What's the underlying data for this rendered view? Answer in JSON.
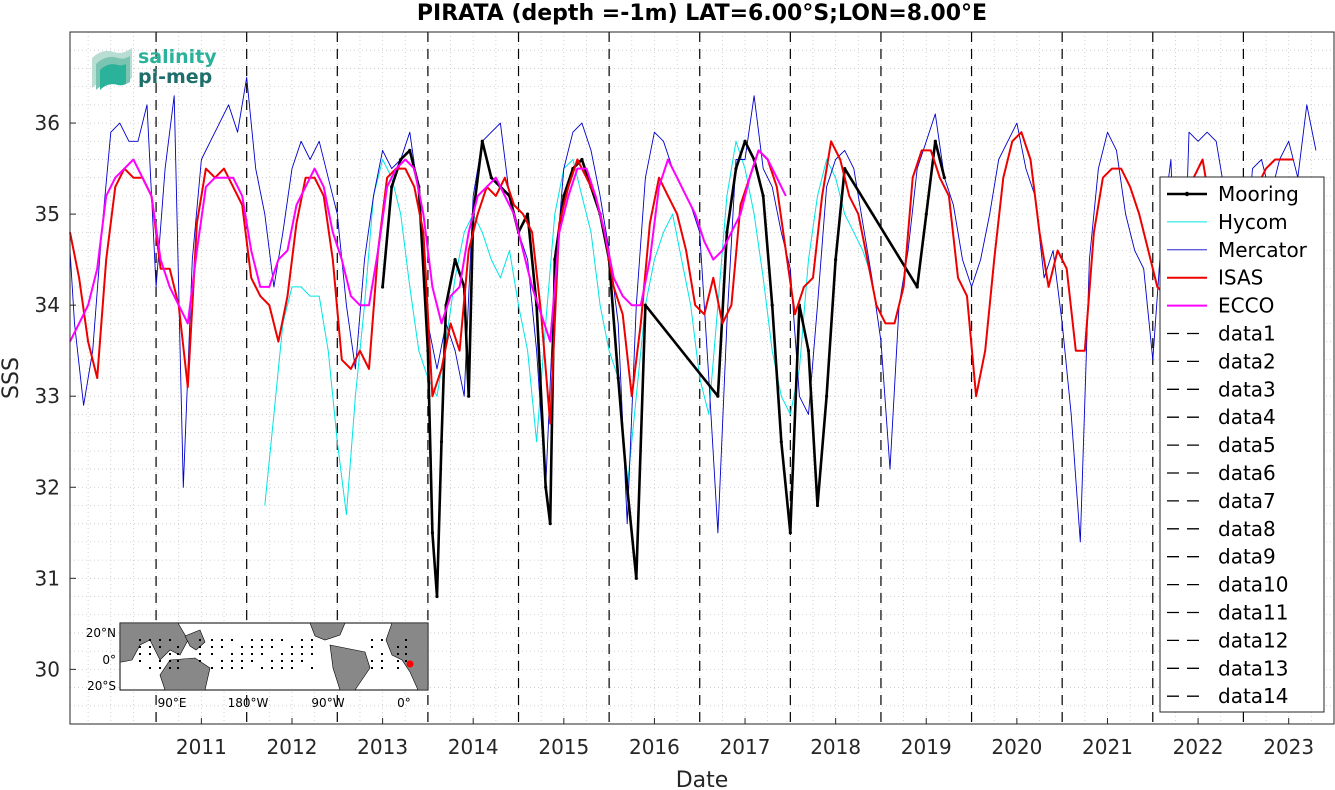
{
  "chart_data": {
    "type": "line",
    "title": "PIRATA (depth =-1m) LAT=6.00°S;LON=8.00°E",
    "xlabel": "Date",
    "ylabel": "SSS",
    "xlim": [
      2010.05,
      2024.0
    ],
    "ylim": [
      29.4,
      37.0
    ],
    "x_ticks": [
      "2011",
      "2012",
      "2013",
      "2014",
      "2015",
      "2016",
      "2017",
      "2018",
      "2019",
      "2020",
      "2021",
      "2022",
      "2023"
    ],
    "y_ticks": [
      "30",
      "31",
      "32",
      "33",
      "34",
      "35",
      "36"
    ],
    "grid": "on (dotted, major and minor)",
    "legend_position": "right",
    "logo": {
      "line1": "salinity",
      "line2": "pi-mep"
    },
    "inset_map": {
      "lat_labels": [
        "20°N",
        "0°",
        "20°S"
      ],
      "lon_labels": [
        "90°E",
        "180°W",
        "90°W",
        "0°"
      ],
      "marker_color": "#ff0000"
    },
    "vlines": {
      "x": [
        2011.0,
        2012.0,
        2013.0,
        2014.0,
        2015.0,
        2016.0,
        2017.0,
        2018.0,
        2019.0,
        2020.0,
        2021.0,
        2022.0,
        2023.0
      ],
      "style": "dashed",
      "color": "#000000"
    },
    "series": [
      {
        "name": "Mooring",
        "color": "#000000",
        "x": [
          2013.5,
          2013.6,
          2013.7,
          2013.8,
          2013.9,
          2014.0,
          2014.05,
          2014.1,
          2014.15,
          2014.2,
          2014.3,
          2014.4,
          2014.45,
          2014.5,
          2014.6,
          2014.7,
          2014.8,
          2014.9,
          2015.0,
          2015.1,
          2015.2,
          2015.3,
          2015.35,
          2015.4,
          2015.5,
          2015.6,
          2015.7,
          2015.8,
          2015.9,
          2016.0,
          2016.1,
          2016.2,
          2016.3,
          2016.4,
          2017.2,
          2017.3,
          2017.4,
          2017.5,
          2017.6,
          2017.7,
          2017.8,
          2017.9,
          2018.0,
          2018.1,
          2018.2,
          2018.3,
          2018.4,
          2018.5,
          2018.6,
          2019.4,
          2019.5,
          2019.6,
          2019.7
        ],
        "y": [
          34.2,
          35.3,
          35.6,
          35.7,
          35.3,
          33.5,
          31.5,
          30.8,
          32.5,
          34.0,
          34.5,
          34.2,
          33.0,
          35.0,
          35.8,
          35.4,
          35.3,
          35.2,
          34.8,
          35.0,
          34.0,
          32.0,
          31.6,
          34.5,
          35.2,
          35.5,
          35.6,
          35.3,
          35.0,
          34.5,
          33.2,
          32.0,
          31.0,
          34.0,
          33.0,
          34.8,
          35.5,
          35.8,
          35.6,
          35.2,
          34.0,
          32.5,
          31.5,
          34.0,
          33.5,
          31.8,
          33.0,
          34.5,
          35.5,
          34.2,
          35.0,
          35.8,
          35.4
        ]
      },
      {
        "name": "Hycom",
        "color": "#00e5e5",
        "x": [
          2012.2,
          2012.3,
          2012.4,
          2012.5,
          2012.6,
          2012.7,
          2012.8,
          2012.9,
          2013.0,
          2013.1,
          2013.2,
          2013.3,
          2013.4,
          2013.5,
          2013.6,
          2013.7,
          2013.8,
          2013.9,
          2014.0,
          2014.1,
          2014.2,
          2014.3,
          2014.4,
          2014.5,
          2014.6,
          2014.7,
          2014.8,
          2014.9,
          2015.0,
          2015.1,
          2015.2,
          2015.3,
          2015.4,
          2015.5,
          2015.6,
          2015.7,
          2015.8,
          2015.9,
          2016.0,
          2016.1,
          2016.2,
          2016.3,
          2016.4,
          2016.5,
          2016.6,
          2016.7,
          2016.8,
          2016.9,
          2017.0,
          2017.1,
          2017.2,
          2017.3,
          2017.4,
          2017.5,
          2017.6,
          2017.7,
          2017.8,
          2017.9,
          2018.0,
          2018.1,
          2018.2,
          2018.3,
          2018.4,
          2018.5,
          2018.6,
          2018.7,
          2018.8,
          2018.9
        ],
        "y": [
          31.8,
          32.8,
          33.8,
          34.2,
          34.2,
          34.1,
          34.1,
          33.5,
          32.5,
          31.7,
          33.0,
          34.0,
          35.2,
          35.6,
          35.4,
          35.0,
          34.2,
          33.5,
          33.2,
          33.0,
          33.6,
          34.3,
          34.8,
          35.0,
          34.8,
          34.5,
          34.3,
          34.6,
          34.0,
          33.5,
          32.5,
          33.8,
          35.0,
          35.5,
          35.6,
          35.2,
          34.8,
          34.0,
          33.5,
          33.2,
          32.0,
          33.0,
          34.0,
          34.5,
          34.8,
          35.0,
          34.5,
          34.0,
          33.2,
          32.8,
          34.0,
          35.2,
          35.8,
          35.5,
          35.0,
          34.3,
          33.5,
          33.0,
          32.8,
          33.3,
          34.5,
          35.2,
          35.6,
          35.4,
          35.0,
          34.8,
          34.6,
          34.3
        ]
      },
      {
        "name": "Mercator",
        "color": "#0000cc",
        "x": [
          2010.05,
          2010.1,
          2010.2,
          2010.3,
          2010.4,
          2010.5,
          2010.6,
          2010.7,
          2010.8,
          2010.9,
          2011.0,
          2011.1,
          2011.2,
          2011.3,
          2011.4,
          2011.5,
          2011.6,
          2011.7,
          2011.8,
          2011.9,
          2012.0,
          2012.1,
          2012.2,
          2012.3,
          2012.4,
          2012.5,
          2012.6,
          2012.7,
          2012.8,
          2012.9,
          2013.0,
          2013.1,
          2013.2,
          2013.3,
          2013.4,
          2013.5,
          2013.6,
          2013.7,
          2013.8,
          2013.9,
          2014.0,
          2014.1,
          2014.2,
          2014.3,
          2014.4,
          2014.5,
          2014.6,
          2014.7,
          2014.8,
          2014.9,
          2015.0,
          2015.1,
          2015.2,
          2015.3,
          2015.4,
          2015.5,
          2015.6,
          2015.7,
          2015.8,
          2015.9,
          2016.0,
          2016.1,
          2016.2,
          2016.3,
          2016.4,
          2016.5,
          2016.6,
          2016.7,
          2016.8,
          2016.9,
          2017.0,
          2017.1,
          2017.2,
          2017.3,
          2017.4,
          2017.5,
          2017.6,
          2017.7,
          2017.8,
          2017.9,
          2018.0,
          2018.1,
          2018.2,
          2018.3,
          2018.4,
          2018.5,
          2018.6,
          2018.7,
          2018.8,
          2018.9,
          2019.0,
          2019.1,
          2019.2,
          2019.3,
          2019.4,
          2019.5,
          2019.6,
          2019.7,
          2019.8,
          2019.9,
          2020.0,
          2020.1,
          2020.2,
          2020.3,
          2020.4,
          2020.5,
          2020.6,
          2020.7,
          2020.8,
          2020.9,
          2021.0,
          2021.1,
          2021.2,
          2021.3,
          2021.4,
          2021.5,
          2021.6,
          2021.7,
          2021.8,
          2021.9,
          2022.0,
          2022.1,
          2022.2,
          2022.3,
          2022.4,
          2022.5,
          2022.6,
          2022.7,
          2022.8,
          2022.9,
          2023.0,
          2023.1,
          2023.2,
          2023.3,
          2023.4,
          2023.5,
          2023.6,
          2023.7,
          2023.8
        ],
        "y": [
          34.6,
          33.8,
          32.9,
          33.5,
          34.8,
          35.9,
          36.0,
          35.8,
          35.8,
          36.2,
          34.2,
          35.5,
          36.3,
          32.0,
          34.5,
          35.6,
          35.8,
          36.0,
          36.2,
          35.9,
          36.5,
          35.5,
          35.0,
          34.2,
          34.8,
          35.5,
          35.8,
          35.6,
          35.8,
          35.4,
          35.0,
          34.0,
          33.3,
          34.5,
          35.2,
          35.7,
          35.5,
          35.6,
          35.9,
          35.2,
          33.8,
          33.3,
          33.8,
          33.5,
          33.0,
          35.2,
          35.8,
          35.9,
          36.0,
          35.2,
          34.8,
          34.5,
          33.5,
          32.0,
          34.3,
          35.5,
          35.9,
          36.0,
          35.7,
          35.2,
          34.6,
          33.8,
          31.6,
          34.0,
          35.4,
          35.9,
          35.8,
          35.5,
          35.3,
          35.1,
          34.8,
          33.2,
          31.5,
          33.8,
          35.6,
          35.6,
          36.3,
          35.5,
          35.3,
          34.8,
          34.4,
          33.0,
          32.8,
          34.0,
          35.3,
          35.6,
          35.7,
          35.5,
          34.9,
          34.3,
          33.6,
          32.2,
          34.0,
          34.6,
          35.5,
          35.8,
          36.1,
          35.4,
          35.1,
          34.5,
          34.2,
          34.5,
          35.0,
          35.6,
          35.8,
          36.0,
          35.5,
          35.2,
          34.3,
          34.6,
          33.8,
          32.8,
          31.4,
          34.5,
          35.5,
          35.9,
          35.7,
          35.0,
          34.6,
          34.4,
          33.4,
          34.8,
          35.6,
          32.8,
          35.9,
          35.8,
          35.9,
          35.8,
          35.2,
          34.0,
          34.3,
          35.5,
          35.6,
          35.2,
          35.6,
          35.8,
          35.4,
          36.2,
          35.7
        ]
      },
      {
        "name": "ISAS",
        "color": "#ee0000",
        "x": [
          2010.05,
          2010.15,
          2010.25,
          2010.35,
          2010.45,
          2010.55,
          2010.65,
          2010.75,
          2010.85,
          2010.95,
          2011.05,
          2011.15,
          2011.25,
          2011.35,
          2011.45,
          2011.55,
          2011.65,
          2011.75,
          2011.85,
          2011.95,
          2012.05,
          2012.15,
          2012.25,
          2012.35,
          2012.45,
          2012.55,
          2012.65,
          2012.75,
          2012.85,
          2012.95,
          2013.05,
          2013.15,
          2013.25,
          2013.35,
          2013.45,
          2013.55,
          2013.65,
          2013.75,
          2013.85,
          2013.95,
          2014.05,
          2014.15,
          2014.25,
          2014.35,
          2014.45,
          2014.55,
          2014.65,
          2014.75,
          2014.85,
          2014.95,
          2015.05,
          2015.15,
          2015.25,
          2015.35,
          2015.45,
          2015.55,
          2015.65,
          2015.75,
          2015.85,
          2015.95,
          2016.05,
          2016.15,
          2016.25,
          2016.35,
          2016.45,
          2016.55,
          2016.65,
          2016.75,
          2016.85,
          2016.95,
          2017.05,
          2017.15,
          2017.25,
          2017.35,
          2017.45,
          2017.55,
          2017.65,
          2017.75,
          2017.85,
          2017.95,
          2018.05,
          2018.15,
          2018.25,
          2018.35,
          2018.45,
          2018.55,
          2018.65,
          2018.75,
          2018.85,
          2018.95,
          2019.05,
          2019.15,
          2019.25,
          2019.35,
          2019.45,
          2019.55,
          2019.65,
          2019.75,
          2019.85,
          2019.95,
          2020.05,
          2020.15,
          2020.25,
          2020.35,
          2020.45,
          2020.55,
          2020.65,
          2020.75,
          2020.85,
          2020.95,
          2021.05,
          2021.15,
          2021.25,
          2021.35,
          2021.45,
          2021.55,
          2021.65,
          2021.75,
          2021.85,
          2021.95,
          2022.05,
          2022.15,
          2022.25,
          2022.35,
          2022.45,
          2022.55,
          2022.65,
          2022.75,
          2022.85,
          2022.95,
          2023.05,
          2023.15,
          2023.25,
          2023.35,
          2023.45,
          2023.55
        ],
        "y": [
          34.8,
          34.3,
          33.6,
          33.2,
          34.5,
          35.3,
          35.5,
          35.4,
          35.4,
          35.2,
          34.4,
          34.4,
          34.0,
          33.1,
          34.9,
          35.5,
          35.4,
          35.5,
          35.3,
          35.1,
          34.3,
          34.1,
          34.0,
          33.6,
          34.1,
          34.9,
          35.4,
          35.4,
          35.2,
          34.5,
          33.4,
          33.3,
          33.5,
          33.3,
          34.6,
          35.4,
          35.5,
          35.5,
          35.3,
          34.8,
          33.0,
          33.3,
          33.8,
          33.5,
          34.6,
          35.0,
          35.3,
          35.2,
          35.4,
          35.1,
          35.0,
          34.8,
          33.9,
          32.7,
          34.9,
          35.3,
          35.6,
          35.4,
          35.2,
          34.8,
          34.2,
          33.9,
          33.0,
          33.8,
          34.9,
          35.4,
          35.2,
          35.0,
          34.6,
          34.0,
          33.9,
          34.3,
          33.8,
          34.0,
          35.1,
          35.4,
          35.7,
          35.6,
          35.3,
          34.6,
          33.9,
          34.2,
          34.3,
          35.2,
          35.8,
          35.6,
          35.2,
          35.0,
          34.5,
          34.0,
          33.8,
          33.8,
          34.2,
          35.4,
          35.7,
          35.7,
          35.4,
          35.2,
          34.3,
          34.1,
          33.0,
          33.5,
          34.5,
          35.4,
          35.8,
          35.9,
          35.6,
          34.8,
          34.2,
          34.6,
          34.4,
          33.5,
          33.5,
          34.8,
          35.4,
          35.5,
          35.5,
          35.3,
          35.0,
          34.6,
          34.2,
          34.1,
          34.6,
          35.2,
          35.4,
          35.6,
          35.0,
          34.8,
          34.8,
          34.6,
          35.0,
          35.3,
          35.5,
          35.6,
          35.6,
          35.6
        ]
      },
      {
        "name": "ECCO",
        "color": "#ff00ff",
        "x": [
          2010.05,
          2010.15,
          2010.25,
          2010.35,
          2010.45,
          2010.55,
          2010.65,
          2010.75,
          2010.85,
          2010.95,
          2011.05,
          2011.15,
          2011.25,
          2011.35,
          2011.45,
          2011.55,
          2011.65,
          2011.75,
          2011.85,
          2011.95,
          2012.05,
          2012.15,
          2012.25,
          2012.35,
          2012.45,
          2012.55,
          2012.65,
          2012.75,
          2012.85,
          2012.95,
          2013.05,
          2013.15,
          2013.25,
          2013.35,
          2013.45,
          2013.55,
          2013.65,
          2013.75,
          2013.85,
          2013.95,
          2014.05,
          2014.15,
          2014.25,
          2014.35,
          2014.45,
          2014.55,
          2014.65,
          2014.75,
          2014.85,
          2014.95,
          2015.05,
          2015.15,
          2015.25,
          2015.35,
          2015.45,
          2015.55,
          2015.65,
          2015.75,
          2015.85,
          2015.95,
          2016.05,
          2016.15,
          2016.25,
          2016.35,
          2016.45,
          2016.55,
          2016.65,
          2016.75,
          2016.85,
          2016.95,
          2017.05,
          2017.15,
          2017.25,
          2017.35,
          2017.45,
          2017.55,
          2017.65,
          2017.75,
          2017.85,
          2017.95
        ],
        "y": [
          33.6,
          33.8,
          34.0,
          34.4,
          35.2,
          35.4,
          35.5,
          35.6,
          35.4,
          35.2,
          34.5,
          34.2,
          34.0,
          33.8,
          34.6,
          35.3,
          35.4,
          35.4,
          35.4,
          35.2,
          34.6,
          34.2,
          34.2,
          34.5,
          34.6,
          35.1,
          35.3,
          35.5,
          35.3,
          34.8,
          34.5,
          34.1,
          34.0,
          34.0,
          34.6,
          35.3,
          35.5,
          35.6,
          35.5,
          35.0,
          34.2,
          33.8,
          34.1,
          34.2,
          34.8,
          35.2,
          35.3,
          35.4,
          35.2,
          35.0,
          34.6,
          34.2,
          33.9,
          33.6,
          34.8,
          35.2,
          35.5,
          35.5,
          35.2,
          34.8,
          34.3,
          34.1,
          34.0,
          34.0,
          34.5,
          35.3,
          35.6,
          35.4,
          35.2,
          35.0,
          34.7,
          34.5,
          34.6,
          34.8,
          35.0,
          35.4,
          35.7,
          35.6,
          35.4,
          35.2
        ]
      },
      {
        "name": "data1",
        "color": "#000000"
      },
      {
        "name": "data2",
        "color": "#000000"
      },
      {
        "name": "data3",
        "color": "#000000"
      },
      {
        "name": "data4",
        "color": "#000000"
      },
      {
        "name": "data5",
        "color": "#000000"
      },
      {
        "name": "data6",
        "color": "#000000"
      },
      {
        "name": "data7",
        "color": "#000000"
      },
      {
        "name": "data8",
        "color": "#000000"
      },
      {
        "name": "data9",
        "color": "#000000"
      },
      {
        "name": "data10",
        "color": "#000000"
      },
      {
        "name": "data11",
        "color": "#000000"
      },
      {
        "name": "data12",
        "color": "#000000"
      },
      {
        "name": "data13",
        "color": "#000000"
      },
      {
        "name": "data14",
        "color": "#000000"
      }
    ]
  }
}
